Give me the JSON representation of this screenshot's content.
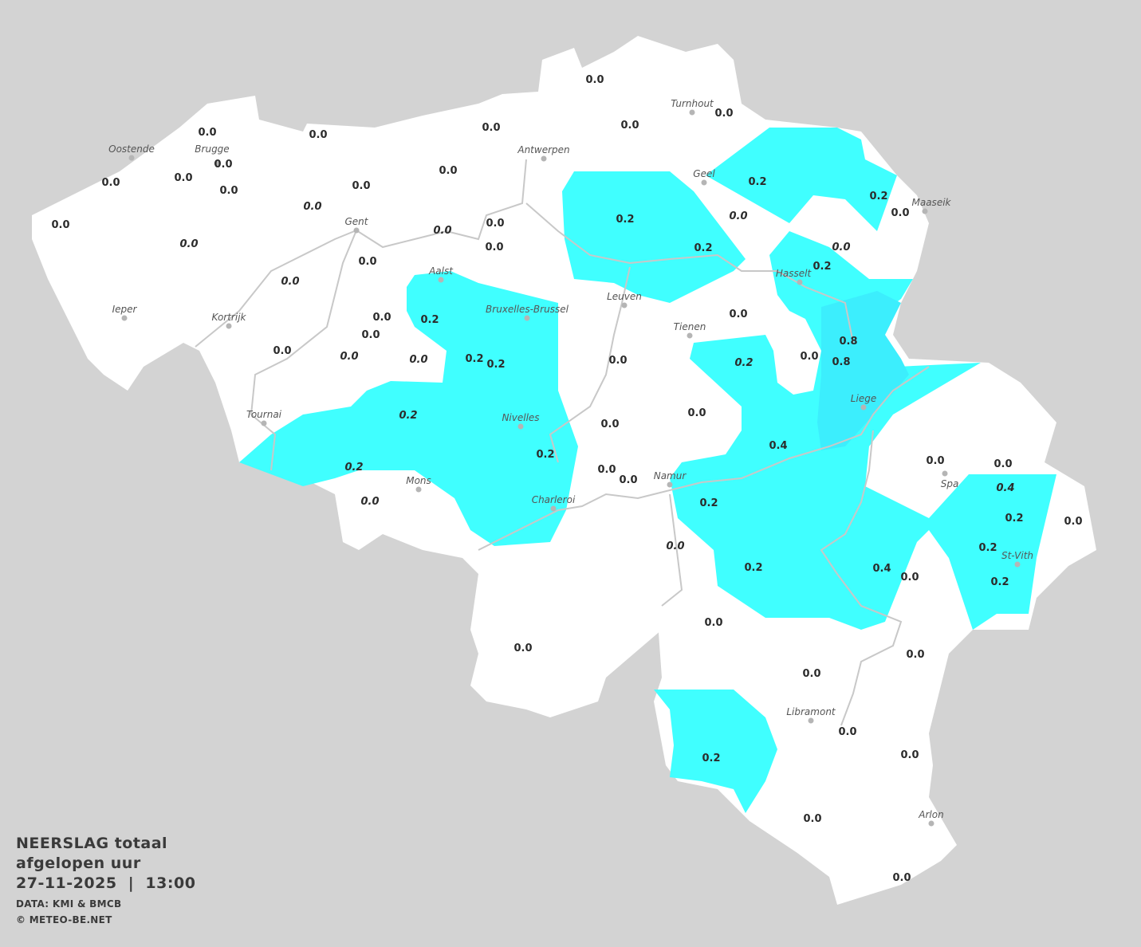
{
  "colors": {
    "background": "#d3d3d3",
    "land": "#ffffff",
    "precip_0_2": "#40ffff",
    "precip_0_8": "#3ceefd",
    "rivers": "#c8c8c8"
  },
  "legend": {
    "title": "NEERSLAG totaal",
    "subtitle": "afgelopen uur",
    "datetime": "27-11-2025  |  13:00",
    "source": "DATA: KMI & BMCB",
    "copyright": "© METEO-BE.NET"
  },
  "cities": [
    "Oostende",
    "Brugge",
    "Antwerpen",
    "Turnhout",
    "Geel",
    "Maaseik",
    "Gent",
    "Aalst",
    "Hasselt",
    "Leuven",
    "Bruxelles-Brussel",
    "Ieper",
    "Kortrijk",
    "Tienen",
    "Liege",
    "Tournai",
    "Nivelles",
    "Spa",
    "Mons",
    "Namur",
    "Charleroi",
    "St-Vith",
    "Libramont",
    "Arlon"
  ],
  "values": [
    {
      "v": "0.0"
    },
    {
      "v": "0.0"
    },
    {
      "v": "0.0"
    },
    {
      "v": "0.0"
    },
    {
      "v": "0.0"
    },
    {
      "v": "0.0"
    },
    {
      "v": "0.0"
    },
    {
      "v": "0.0"
    },
    {
      "v": "0.0"
    },
    {
      "v": "0.0"
    },
    {
      "v": "0.0"
    },
    {
      "v": "0.0"
    },
    {
      "v": "0.0",
      "italic": true
    },
    {
      "v": "0.0"
    },
    {
      "v": "0.0",
      "italic": true
    },
    {
      "v": "0.0",
      "italic": true
    },
    {
      "v": "0.0"
    },
    {
      "v": "0.0"
    },
    {
      "v": "0.0"
    },
    {
      "v": "0.0",
      "italic": true
    },
    {
      "v": "0.2"
    },
    {
      "v": "0.2"
    },
    {
      "v": "0.2"
    },
    {
      "v": "0.0"
    },
    {
      "v": "0.0",
      "italic": true
    },
    {
      "v": "0.2"
    },
    {
      "v": "0.0",
      "italic": true
    },
    {
      "v": "0.2"
    },
    {
      "v": "0.2"
    },
    {
      "v": "0.0"
    },
    {
      "v": "0.0"
    },
    {
      "v": "0.0"
    },
    {
      "v": "0.0",
      "italic": true
    },
    {
      "v": "0.0",
      "italic": true
    },
    {
      "v": "0.2"
    },
    {
      "v": "0.2"
    },
    {
      "v": "0.0"
    },
    {
      "v": "0.0"
    },
    {
      "v": "0.2",
      "italic": true
    },
    {
      "v": "0.0"
    },
    {
      "v": "0.8"
    },
    {
      "v": "0.8"
    },
    {
      "v": "0.2",
      "italic": true
    },
    {
      "v": "0.0"
    },
    {
      "v": "0.0"
    },
    {
      "v": "0.4"
    },
    {
      "v": "0.2"
    },
    {
      "v": "0.2",
      "italic": true
    },
    {
      "v": "0.0",
      "italic": true
    },
    {
      "v": "0.0"
    },
    {
      "v": "0.0"
    },
    {
      "v": "0.0"
    },
    {
      "v": "0.0"
    },
    {
      "v": "0.4",
      "italic": true
    },
    {
      "v": "0.2"
    },
    {
      "v": "0.2"
    },
    {
      "v": "0.0"
    },
    {
      "v": "0.0",
      "italic": true
    },
    {
      "v": "0.2"
    },
    {
      "v": "0.2"
    },
    {
      "v": "0.4"
    },
    {
      "v": "0.0"
    },
    {
      "v": "0.2"
    },
    {
      "v": "0.0"
    },
    {
      "v": "0.0"
    },
    {
      "v": "0.0"
    },
    {
      "v": "0.0"
    },
    {
      "v": "0.0"
    },
    {
      "v": "0.0"
    },
    {
      "v": "0.2"
    },
    {
      "v": "0.0"
    },
    {
      "v": "0.0"
    }
  ]
}
